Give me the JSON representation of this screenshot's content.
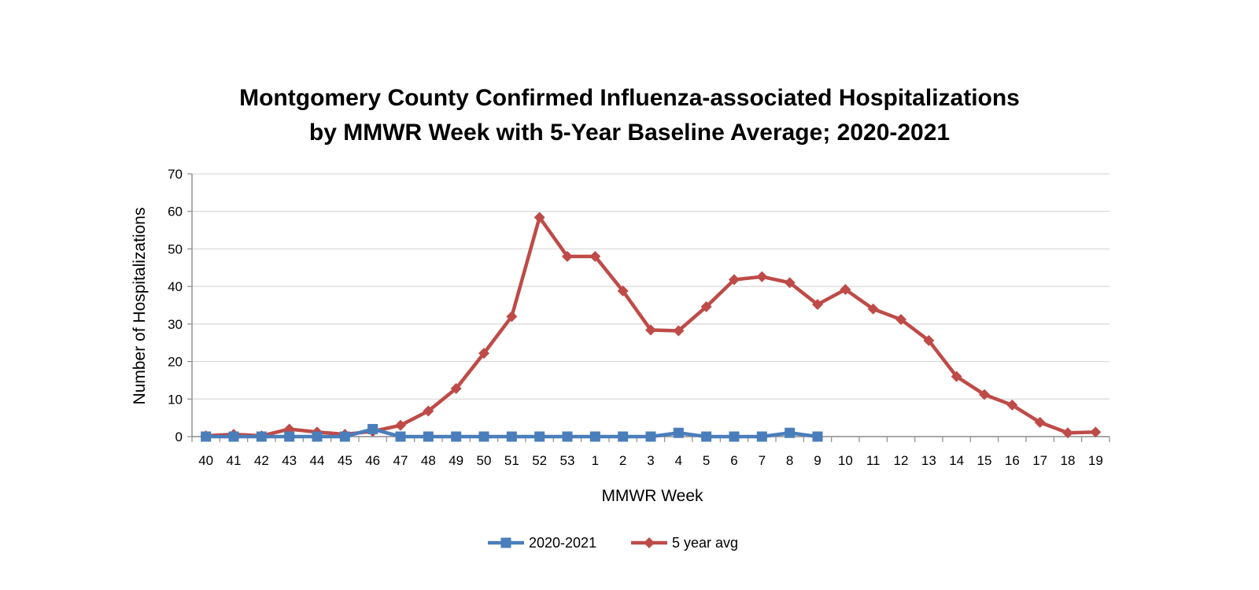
{
  "chart_data": {
    "type": "line",
    "title_lines": [
      "Montgomery County Confirmed Influenza-associated Hospitalizations",
      "by MMWR Week with 5-Year Baseline Average; 2020-2021"
    ],
    "xlabel": "MMWR Week",
    "ylabel": "Number of Hospitalizations",
    "ylim": [
      0,
      70
    ],
    "yticks": [
      0,
      10,
      20,
      30,
      40,
      50,
      60,
      70
    ],
    "grid": true,
    "legend_position": "bottom",
    "categories": [
      "40",
      "41",
      "42",
      "43",
      "44",
      "45",
      "46",
      "47",
      "48",
      "49",
      "50",
      "51",
      "52",
      "53",
      "1",
      "2",
      "3",
      "4",
      "5",
      "6",
      "7",
      "8",
      "9",
      "10",
      "11",
      "12",
      "13",
      "14",
      "15",
      "16",
      "17",
      "18",
      "19"
    ],
    "series": [
      {
        "name": "2020-2021",
        "color": "#4a7ebb",
        "marker": "square",
        "values": [
          0,
          0,
          0,
          0,
          0,
          0,
          2,
          0,
          0,
          0,
          0,
          0,
          0,
          0,
          0,
          0,
          0,
          1,
          0,
          0,
          0,
          1,
          0,
          null,
          null,
          null,
          null,
          null,
          null,
          null,
          null,
          null,
          null
        ]
      },
      {
        "name": "5 year avg",
        "color": "#be4b48",
        "marker": "diamond",
        "values": [
          0.2,
          0.6,
          0.2,
          2.0,
          1.2,
          0.6,
          1.4,
          3.0,
          6.8,
          12.8,
          22.2,
          32.0,
          58.4,
          48.0,
          48.0,
          38.8,
          28.4,
          28.2,
          34.6,
          41.8,
          42.6,
          41.0,
          35.2,
          39.2,
          34.0,
          31.2,
          25.6,
          16.0,
          11.2,
          8.4,
          3.8,
          1.0,
          1.2
        ]
      }
    ]
  }
}
